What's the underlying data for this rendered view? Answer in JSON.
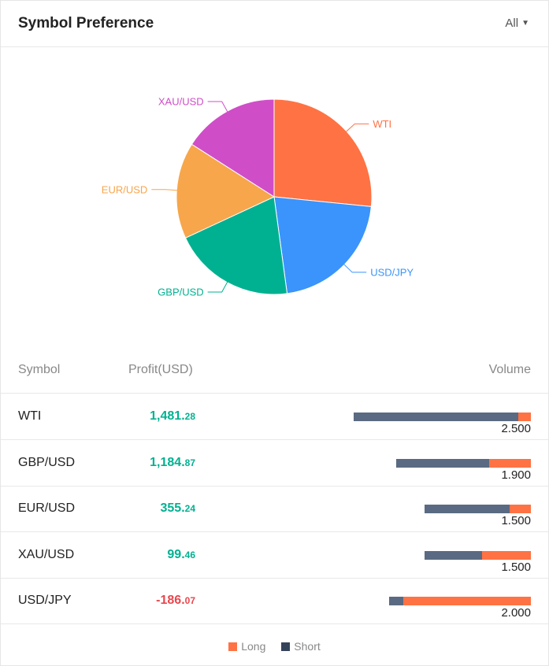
{
  "header": {
    "title": "Symbol Preference",
    "filter_label": "All"
  },
  "chart_data": {
    "type": "pie",
    "slices": [
      {
        "label": "WTI",
        "value": 2.5,
        "color": "#ff7243"
      },
      {
        "label": "USD/JPY",
        "value": 2.0,
        "color": "#3a94fb"
      },
      {
        "label": "GBP/USD",
        "value": 1.9,
        "color": "#00b191"
      },
      {
        "label": "EUR/USD",
        "value": 1.5,
        "color": "#f7a64b"
      },
      {
        "label": "XAU/USD",
        "value": 1.5,
        "color": "#d04dc8"
      }
    ]
  },
  "table": {
    "headers": {
      "symbol": "Symbol",
      "profit": "Profit(USD)",
      "volume": "Volume"
    },
    "rows": [
      {
        "symbol": "WTI",
        "profit_int": "1,481.",
        "profit_dec": "28",
        "volume": "2.500",
        "short_fraction": 0.93,
        "long_fraction": 0.07,
        "profit_color": "#00b191"
      },
      {
        "symbol": "GBP/USD",
        "profit_int": "1,184.",
        "profit_dec": "87",
        "volume": "1.900",
        "short_fraction": 0.69,
        "long_fraction": 0.31,
        "profit_color": "#00b191"
      },
      {
        "symbol": "EUR/USD",
        "profit_int": "355.",
        "profit_dec": "24",
        "volume": "1.500",
        "short_fraction": 0.8,
        "long_fraction": 0.2,
        "profit_color": "#00b191"
      },
      {
        "symbol": "XAU/USD",
        "profit_int": "99.",
        "profit_dec": "46",
        "volume": "1.500",
        "short_fraction": 0.54,
        "long_fraction": 0.46,
        "profit_color": "#00b191"
      },
      {
        "symbol": "USD/JPY",
        "profit_int": "-186.",
        "profit_dec": "07",
        "volume": "2.000",
        "short_fraction": 0.1,
        "long_fraction": 0.9,
        "profit_color": "#e8474e"
      }
    ]
  },
  "legend": [
    {
      "label": "Long",
      "color": "#ff7243"
    },
    {
      "label": "Short",
      "color": "#34435a"
    }
  ]
}
